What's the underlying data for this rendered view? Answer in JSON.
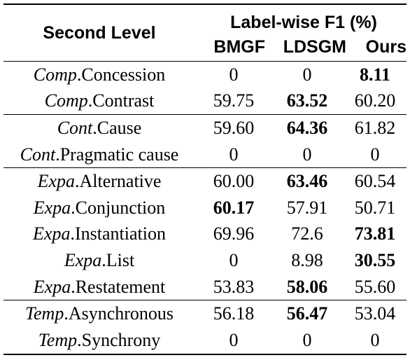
{
  "header": {
    "first_col": "Second Level",
    "group": "Label-wise F1 (%)",
    "columns": [
      "BMGF",
      "LDSGM",
      "Ours"
    ]
  },
  "rows": [
    {
      "prefix": "Comp",
      "suffix": ".Concession",
      "bmgf": "0",
      "ldsgm": "0",
      "ours": "8.11",
      "bold": "ours",
      "group_start": true
    },
    {
      "prefix": "Comp",
      "suffix": ".Contrast",
      "bmgf": "59.75",
      "ldsgm": "63.52",
      "ours": "60.20",
      "bold": "ldsgm"
    },
    {
      "prefix": "Cont",
      "suffix": ".Cause",
      "bmgf": "59.60",
      "ldsgm": "64.36",
      "ours": "61.82",
      "bold": "ldsgm",
      "group_start": true
    },
    {
      "prefix": "Cont",
      "suffix": ".Pragmatic cause",
      "bmgf": "0",
      "ldsgm": "0",
      "ours": "0",
      "bold": ""
    },
    {
      "prefix": "Expa",
      "suffix": ".Alternative",
      "bmgf": "60.00",
      "ldsgm": "63.46",
      "ours": "60.54",
      "bold": "ldsgm",
      "group_start": true
    },
    {
      "prefix": "Expa",
      "suffix": ".Conjunction",
      "bmgf": "60.17",
      "ldsgm": "57.91",
      "ours": "50.71",
      "bold": "bmgf"
    },
    {
      "prefix": "Expa",
      "suffix": ".Instantiation",
      "bmgf": "69.96",
      "ldsgm": "72.6",
      "ours": "73.81",
      "bold": "ours"
    },
    {
      "prefix": "Expa",
      "suffix": ".List",
      "bmgf": "0",
      "ldsgm": "8.98",
      "ours": "30.55",
      "bold": "ours"
    },
    {
      "prefix": "Expa",
      "suffix": ".Restatement",
      "bmgf": "53.83",
      "ldsgm": "58.06",
      "ours": "55.60",
      "bold": "ldsgm"
    },
    {
      "prefix": "Temp",
      "suffix": ".Asynchronous",
      "bmgf": "56.18",
      "ldsgm": "56.47",
      "ours": "53.04",
      "bold": "ldsgm",
      "group_start": true
    },
    {
      "prefix": "Temp",
      "suffix": ".Synchrony",
      "bmgf": "0",
      "ldsgm": "0",
      "ours": "0",
      "bold": ""
    }
  ]
}
